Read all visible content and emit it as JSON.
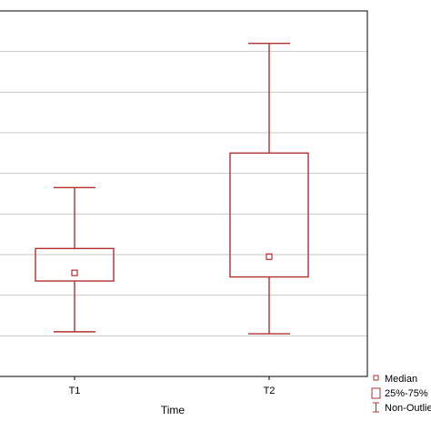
{
  "chart_data": {
    "type": "box",
    "xlabel": "Time",
    "ylabel": "",
    "ylim": [
      0,
      9
    ],
    "grid": true,
    "legend_position": "bottom-right",
    "categories": [
      "T1",
      "T2"
    ],
    "boxes": [
      {
        "name": "T1",
        "min": 1.1,
        "q1": 2.35,
        "median": 2.55,
        "q3": 3.15,
        "max": 4.65
      },
      {
        "name": "T2",
        "min": 1.05,
        "q1": 2.45,
        "median": 2.95,
        "q3": 5.5,
        "max": 8.2
      }
    ],
    "legend": {
      "median": "Median",
      "box": "25%-75%",
      "whisker": "Non-Outlier Range"
    },
    "colors": {
      "series": "#b03030",
      "grid": "#c8c8c8",
      "frame": "#000000"
    }
  }
}
